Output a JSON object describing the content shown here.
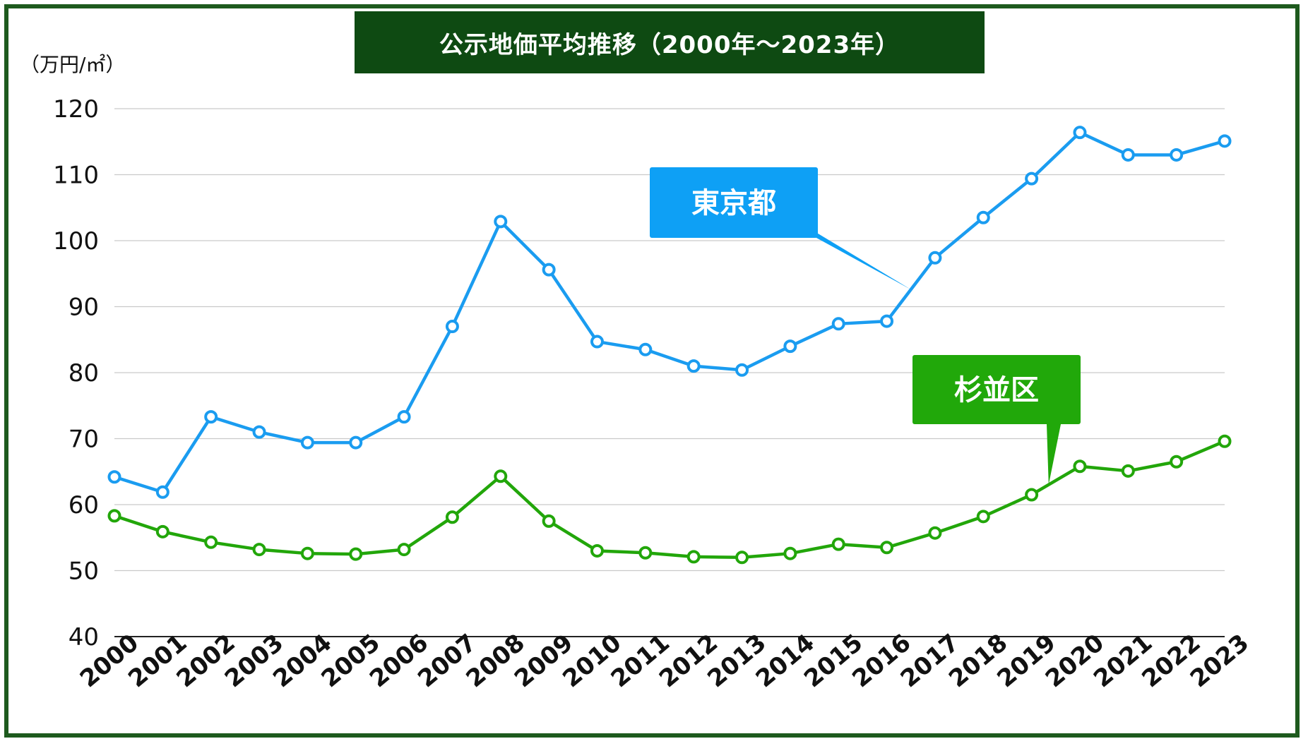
{
  "chart_data": {
    "type": "line",
    "title": "公示地価平均推移（2000年〜2023年）",
    "ylabel": "（万円/㎡）",
    "xlabel": "",
    "ylim": [
      40,
      120
    ],
    "yticks": [
      40,
      50,
      60,
      70,
      80,
      90,
      100,
      110,
      120
    ],
    "grid": true,
    "categories": [
      "2000",
      "2001",
      "2002",
      "2003",
      "2004",
      "2005",
      "2006",
      "2007",
      "2008",
      "2009",
      "2010",
      "2011",
      "2012",
      "2013",
      "2014",
      "2015",
      "2016",
      "2017",
      "2018",
      "2019",
      "2020",
      "2021",
      "2022",
      "2023"
    ],
    "series": [
      {
        "name": "東京都",
        "color": "#1a9cf0",
        "callout_color": "#0ea0f5",
        "values": [
          64.2,
          61.9,
          73.3,
          71.0,
          69.4,
          69.4,
          73.3,
          87.0,
          102.9,
          95.6,
          84.7,
          83.5,
          81.0,
          80.4,
          84.0,
          87.4,
          87.8,
          97.4,
          103.5,
          109.4,
          116.4,
          113.0,
          113.0,
          115.1
        ]
      },
      {
        "name": "杉並区",
        "color": "#22a60a",
        "callout_color": "#21a80a",
        "values": [
          58.3,
          55.9,
          54.3,
          53.2,
          52.6,
          52.5,
          53.2,
          58.1,
          64.3,
          57.5,
          53.0,
          52.7,
          52.1,
          52.0,
          52.6,
          54.0,
          53.5,
          55.7,
          58.2,
          61.5,
          65.8,
          65.1,
          66.5,
          69.6
        ]
      }
    ]
  }
}
